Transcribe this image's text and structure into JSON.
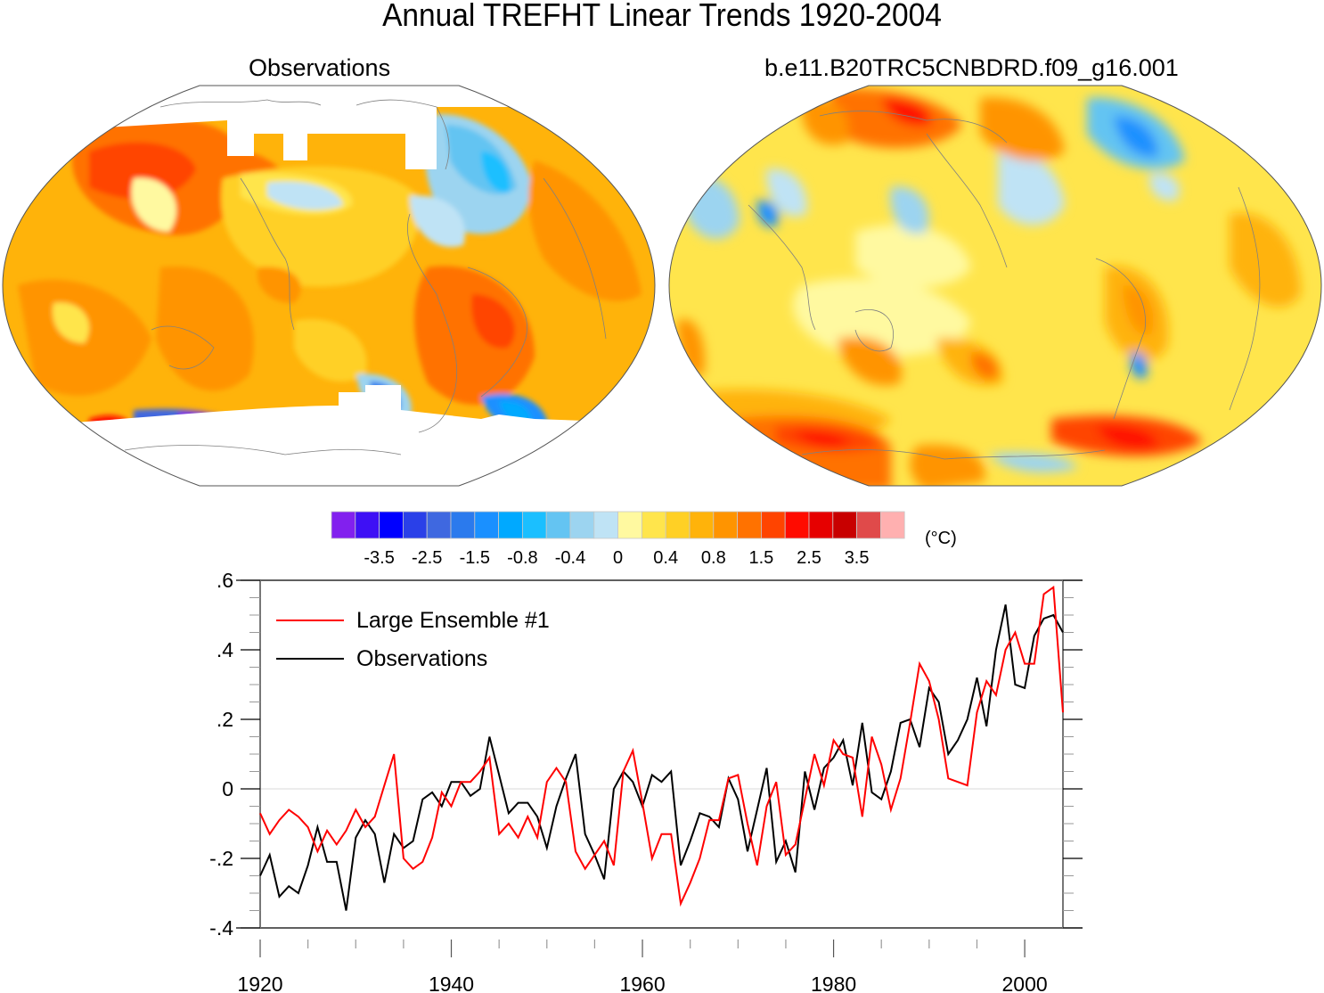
{
  "figure": {
    "title": "Annual TREFHT Linear Trends 1920-2004",
    "panels": [
      {
        "subtitle": "Observations",
        "kind": "map",
        "projection": "Robinson (Pacific-centered)",
        "missing_data": "white (high latitudes / Antarctica)"
      },
      {
        "subtitle": "b.e11.B20TRC5CNBDRD.f09_g16.001",
        "kind": "map",
        "projection": "Robinson (Pacific-centered)"
      }
    ]
  },
  "colorbar": {
    "unit_label": "(°C)",
    "tick_labels": [
      "-3.5",
      "-2.5",
      "-1.5",
      "-0.8",
      "-0.4",
      "0",
      "0.4",
      "0.8",
      "1.5",
      "2.5",
      "3.5"
    ],
    "colors": [
      "#8220ee",
      "#3e10f5",
      "#0000ff",
      "#2a40e8",
      "#3f68e0",
      "#2b7aed",
      "#1a90ff",
      "#00a9ff",
      "#1bbfff",
      "#64c4f2",
      "#9cd4f0",
      "#bfe3f5",
      "#fff9a0",
      "#ffe54c",
      "#ffd025",
      "#ffb30a",
      "#ff9400",
      "#ff7200",
      "#ff4400",
      "#ff0b00",
      "#e60000",
      "#c80000",
      "#e04a4a",
      "#ffb0b0"
    ]
  },
  "chart_data": {
    "type": "line",
    "title": "",
    "xlabel": "",
    "ylabel": "",
    "xlim": [
      1920,
      2004
    ],
    "ylim": [
      -0.4,
      0.6
    ],
    "x_ticks": [
      1920,
      1940,
      1960,
      1980,
      2000
    ],
    "x_tick_labels": [
      "1920",
      "1940",
      "1960",
      "1980",
      "2000"
    ],
    "y_ticks": [
      -0.4,
      -0.2,
      0,
      0.2,
      0.4,
      0.6
    ],
    "y_tick_labels": [
      "-.4",
      "-.2",
      "0",
      ".2",
      ".4",
      ".6"
    ],
    "zero_line": true,
    "legend_position": "top-left",
    "x": [
      1920,
      1921,
      1922,
      1923,
      1924,
      1925,
      1926,
      1927,
      1928,
      1929,
      1930,
      1931,
      1932,
      1933,
      1934,
      1935,
      1936,
      1937,
      1938,
      1939,
      1940,
      1941,
      1942,
      1943,
      1944,
      1945,
      1946,
      1947,
      1948,
      1949,
      1950,
      1951,
      1952,
      1953,
      1954,
      1955,
      1956,
      1957,
      1958,
      1959,
      1960,
      1961,
      1962,
      1963,
      1964,
      1965,
      1966,
      1967,
      1968,
      1969,
      1970,
      1971,
      1972,
      1973,
      1974,
      1975,
      1976,
      1977,
      1978,
      1979,
      1980,
      1981,
      1982,
      1983,
      1984,
      1985,
      1986,
      1987,
      1988,
      1989,
      1990,
      1991,
      1992,
      1993,
      1994,
      1995,
      1996,
      1997,
      1998,
      1999,
      2000,
      2001,
      2002,
      2003,
      2004
    ],
    "series": [
      {
        "name": "Large Ensemble #1",
        "color": "#ff0000",
        "values": [
          -0.07,
          -0.13,
          -0.09,
          -0.06,
          -0.08,
          -0.11,
          -0.18,
          -0.12,
          -0.16,
          -0.12,
          -0.06,
          -0.11,
          -0.08,
          0.01,
          0.1,
          -0.2,
          -0.23,
          -0.21,
          -0.14,
          -0.01,
          -0.05,
          0.02,
          0.02,
          0.05,
          0.09,
          -0.13,
          -0.1,
          -0.14,
          -0.08,
          -0.14,
          0.02,
          0.06,
          0.02,
          -0.18,
          -0.23,
          -0.19,
          -0.15,
          -0.22,
          0.05,
          0.11,
          -0.04,
          -0.2,
          -0.13,
          -0.13,
          -0.33,
          -0.27,
          -0.2,
          -0.09,
          -0.09,
          0.03,
          0.04,
          -0.1,
          -0.22,
          -0.05,
          0.02,
          -0.19,
          -0.16,
          -0.03,
          0.1,
          0.01,
          0.14,
          0.1,
          0.09,
          -0.08,
          0.15,
          0.07,
          -0.06,
          0.03,
          0.19,
          0.36,
          0.31,
          0.2,
          0.03,
          0.02,
          0.01,
          0.22,
          0.31,
          0.27,
          0.4,
          0.45,
          0.36,
          0.36,
          0.56,
          0.58,
          0.22
        ]
      },
      {
        "name": "Observations",
        "color": "#000000",
        "values": [
          -0.25,
          -0.19,
          -0.31,
          -0.28,
          -0.3,
          -0.22,
          -0.11,
          -0.21,
          -0.21,
          -0.35,
          -0.14,
          -0.09,
          -0.13,
          -0.27,
          -0.13,
          -0.17,
          -0.15,
          -0.03,
          -0.01,
          -0.05,
          0.02,
          0.02,
          -0.02,
          0.0,
          0.15,
          0.04,
          -0.07,
          -0.04,
          -0.04,
          -0.08,
          -0.17,
          -0.05,
          0.03,
          0.1,
          -0.13,
          -0.19,
          -0.26,
          0.0,
          0.05,
          0.02,
          -0.05,
          0.04,
          0.02,
          0.05,
          -0.22,
          -0.15,
          -0.07,
          -0.08,
          -0.11,
          0.03,
          -0.03,
          -0.18,
          -0.06,
          0.06,
          -0.21,
          -0.15,
          -0.24,
          0.05,
          -0.06,
          0.06,
          0.09,
          0.14,
          0.01,
          0.19,
          -0.01,
          -0.03,
          0.05,
          0.19,
          0.2,
          0.12,
          0.29,
          0.25,
          0.1,
          0.14,
          0.2,
          0.32,
          0.18,
          0.4,
          0.53,
          0.3,
          0.29,
          0.44,
          0.49,
          0.5,
          0.45
        ]
      }
    ]
  }
}
